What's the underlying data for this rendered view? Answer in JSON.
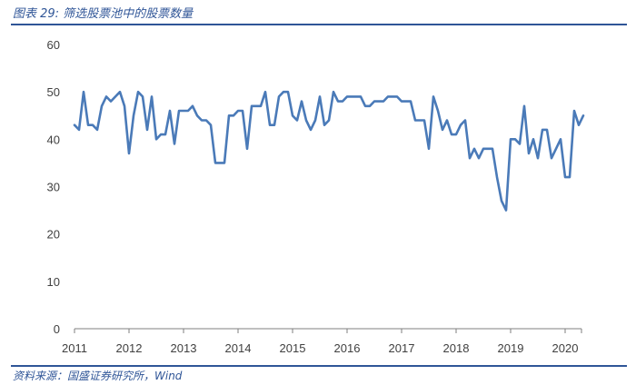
{
  "figure": {
    "title": "图表 29: 筛选股票池中的股票数量",
    "source": "资料来源：国盛证券研究所，Wind"
  },
  "colors": {
    "line": "#4a7ab8",
    "axis": "#7f7f7f",
    "accent": "#2f5597"
  },
  "chart_data": {
    "type": "line",
    "title": "",
    "xlabel": "",
    "ylabel": "",
    "ylim": [
      0,
      60
    ],
    "y_ticks": [
      "0",
      "10",
      "20",
      "30",
      "40",
      "50",
      "60"
    ],
    "x_ticks": [
      "2011",
      "2012",
      "2013",
      "2014",
      "2015",
      "2016",
      "2017",
      "2018",
      "2019",
      "2020"
    ],
    "grid": false,
    "legend": "none",
    "x_start": "2011-01",
    "x_step": "month",
    "series": [
      {
        "values": [
          43,
          42,
          50,
          43,
          43,
          42,
          47,
          49,
          48,
          49,
          50,
          47,
          37,
          45,
          50,
          49,
          42,
          49,
          40,
          41,
          41,
          46,
          39,
          46,
          46,
          46,
          47,
          45,
          44,
          44,
          43,
          35,
          35,
          35,
          45,
          45,
          46,
          46,
          38,
          47,
          47,
          47,
          50,
          43,
          43,
          49,
          50,
          50,
          45,
          44,
          48,
          44,
          42,
          44,
          49,
          43,
          44,
          50,
          48,
          48,
          49,
          49,
          49,
          49,
          47,
          47,
          48,
          48,
          48,
          49,
          49,
          49,
          48,
          48,
          48,
          44,
          44,
          44,
          38,
          49,
          46,
          42,
          44,
          41,
          41,
          43,
          44,
          36,
          38,
          36,
          38,
          38,
          38,
          32,
          27,
          25,
          40,
          40,
          39,
          47,
          37,
          40,
          36,
          42,
          42,
          36,
          38,
          40,
          32,
          32,
          46,
          43,
          45
        ]
      }
    ]
  }
}
